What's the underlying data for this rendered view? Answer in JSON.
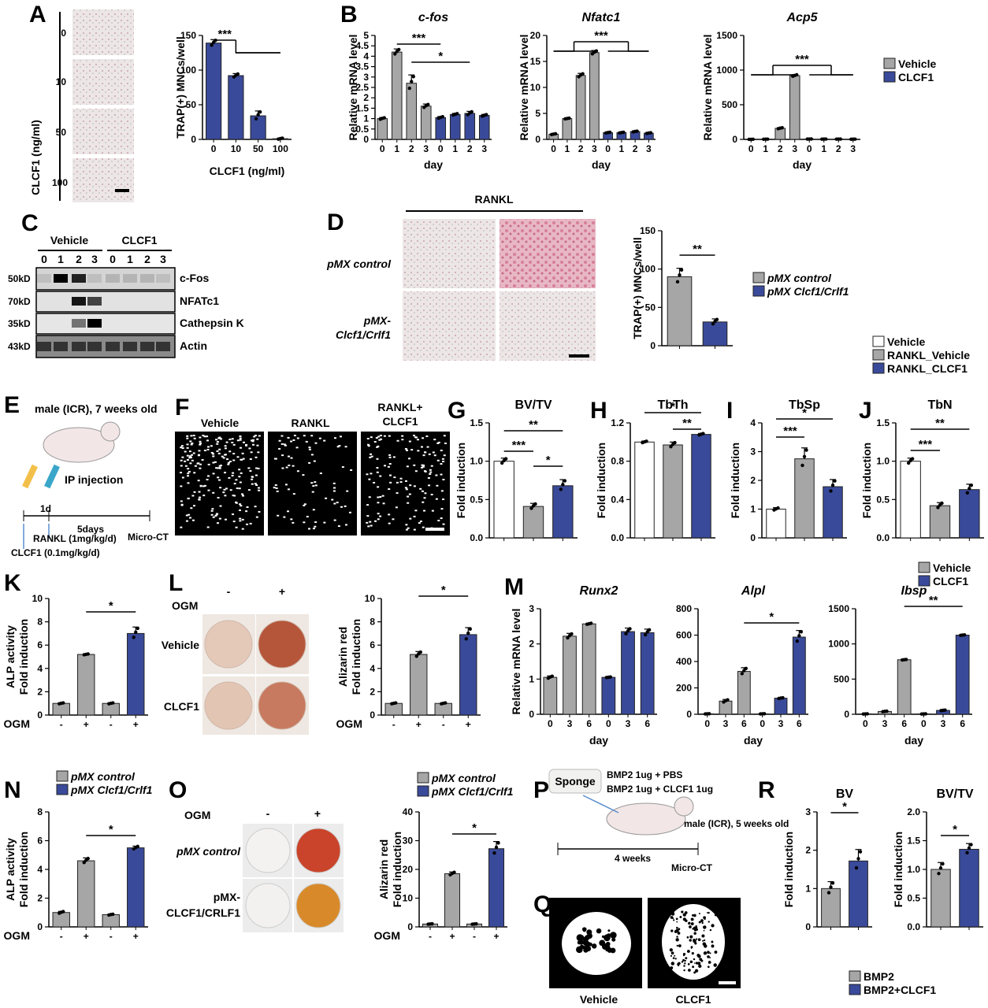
{
  "colors": {
    "vehicle": "#a6a6a6",
    "clcf1": "#3a4a9a",
    "white": "#ffffff",
    "stain": "#e6c3cc",
    "ctbg": "#000000"
  },
  "panel_letters": [
    "A",
    "B",
    "C",
    "D",
    "E",
    "F",
    "G",
    "H",
    "I",
    "J",
    "K",
    "L",
    "M",
    "N",
    "O",
    "P",
    "Q",
    "R"
  ],
  "panelA": {
    "side_label": "CLCF1 (ng/ml)",
    "doses": [
      "0",
      "10",
      "50",
      "100"
    ]
  },
  "panelC": {
    "groups": [
      "Vehicle",
      "CLCF1"
    ],
    "lanes": [
      "0",
      "1",
      "2",
      "3",
      "0",
      "1",
      "2",
      "3"
    ],
    "markers": [
      "50kD",
      "70kD",
      "35kD",
      "43kD"
    ],
    "bands": [
      "c-Fos",
      "NFATc1",
      "Cathepsin K",
      "Actin"
    ]
  },
  "panelD": {
    "top_label": "RANKL",
    "row_labels": [
      "pMX control",
      "pMX-",
      "Clcf1/Crlf1"
    ]
  },
  "panelE": {
    "mouse": "male (ICR), 7 weeks old",
    "route": "IP injection",
    "d1": "1d",
    "d5": "5days",
    "end": "Micro-CT",
    "rankl": "RANKL (1mg/kg/d)",
    "clcf1": "CLCF1 (0.1mg/kg/d)"
  },
  "panelF": {
    "labels": [
      "Vehicle",
      "RANKL",
      "RANKL+",
      "CLCF1"
    ]
  },
  "panelL": {
    "ogm": "OGM",
    "minus": "-",
    "plus": "+",
    "rows": [
      "Vehicle",
      "CLCF1"
    ]
  },
  "panelO": {
    "ogm": "OGM",
    "minus": "-",
    "plus": "+",
    "rows": [
      "pMX control",
      "pMX-",
      "CLCF1/CRLF1"
    ]
  },
  "panelP": {
    "sponge": "Sponge",
    "t1": "BMP2 1ug + PBS",
    "t2": "BMP2 1ug + CLCF1 1ug",
    "mouse": "male (ICR), 5 weeks old",
    "dur": "4 weeks",
    "end": "Micro-CT"
  },
  "panelQ": {
    "labels": [
      "Vehicle",
      "CLCF1"
    ]
  },
  "legends": {
    "B": [
      "Vehicle",
      "CLCF1"
    ],
    "D": [
      "pMX control",
      "pMX Clcf1/Crlf1"
    ],
    "GJ": [
      "Vehicle",
      "RANKL_Vehicle",
      "RANKL_CLCF1"
    ],
    "M": [
      "Vehicle",
      "CLCF1"
    ],
    "N": [
      "pMX control",
      "pMX Clcf1/Crlf1"
    ],
    "O": [
      "pMX control",
      "pMX Clcf1/Crlf1"
    ],
    "R": [
      "BMP2",
      "BMP2+CLCF1"
    ]
  },
  "chart_data": [
    {
      "id": "A",
      "type": "bar",
      "ylabel": "TRAP(+) MNCs/well",
      "xlabel": "CLCF1 (ng/ml)",
      "categories": [
        "0",
        "10",
        "50",
        "100"
      ],
      "values": [
        139,
        92,
        34,
        1
      ],
      "errors": [
        5,
        3,
        7,
        1
      ],
      "ylim": [
        0,
        150
      ],
      "yticks": [
        0,
        50,
        100,
        150
      ],
      "sig": [
        "***"
      ]
    },
    {
      "id": "B1",
      "type": "bar",
      "title": "c-fos",
      "ylabel": "Relative mRNA level",
      "xlabel": "day",
      "categories": [
        "0",
        "1",
        "2",
        "3",
        "0",
        "1",
        "2",
        "3"
      ],
      "values": [
        1.0,
        4.2,
        2.7,
        1.6,
        1.05,
        1.2,
        1.25,
        1.15
      ],
      "errors": [
        0.05,
        0.15,
        0.4,
        0.1,
        0.05,
        0.05,
        0.1,
        0.05
      ],
      "ylim": [
        0,
        5
      ],
      "yticks": [
        0,
        0.5,
        1,
        1.5,
        2,
        2.5,
        3,
        3.5,
        4,
        4.5,
        5
      ],
      "sig": [
        "***",
        "*"
      ]
    },
    {
      "id": "B2",
      "type": "bar",
      "title": "Nfatc1",
      "ylabel": "Relative mRNA level",
      "xlabel": "day",
      "categories": [
        "0",
        "1",
        "2",
        "3",
        "0",
        "1",
        "2",
        "3"
      ],
      "values": [
        1.0,
        4.0,
        12.3,
        16.7,
        1.3,
        1.3,
        1.5,
        1.2
      ],
      "errors": [
        0.1,
        0.1,
        0.4,
        0.4,
        0.1,
        0.1,
        0.1,
        0.1
      ],
      "ylim": [
        0,
        20
      ],
      "yticks": [
        0,
        5,
        10,
        15,
        20
      ],
      "sig": [
        "***"
      ]
    },
    {
      "id": "B3",
      "type": "bar",
      "title": "Acp5",
      "ylabel": "Relative mRNA level",
      "xlabel": "day",
      "categories": [
        "0",
        "1",
        "2",
        "3",
        "0",
        "1",
        "2",
        "3"
      ],
      "values": [
        1,
        3,
        160,
        920,
        5,
        4,
        4,
        3
      ],
      "errors": [
        1,
        1,
        10,
        15,
        1,
        1,
        1,
        1
      ],
      "ylim": [
        0,
        1500
      ],
      "yticks": [
        0,
        500,
        1000,
        1500
      ],
      "sig": [
        "***"
      ]
    },
    {
      "id": "D",
      "type": "bar",
      "ylabel": "TRAP(+) MNCs/well",
      "categories": [
        "pMX control",
        "pMX Clcf1/Crlf1"
      ],
      "values": [
        90,
        31
      ],
      "errors": [
        11,
        4
      ],
      "ylim": [
        0,
        150
      ],
      "yticks": [
        0,
        50,
        100,
        150
      ],
      "sig": [
        "**"
      ]
    },
    {
      "id": "G",
      "type": "bar",
      "title": "BV/TV",
      "ylabel": "Fold induction",
      "categories": [
        "Vehicle",
        "RANKL_Vehicle",
        "RANKL_CLCF1"
      ],
      "values": [
        1.0,
        0.41,
        0.68
      ],
      "errors": [
        0.04,
        0.04,
        0.08
      ],
      "ylim": [
        0,
        1.5
      ],
      "yticks": [
        0.0,
        0.5,
        1.0,
        1.5
      ],
      "sig": [
        "***",
        "**",
        "*"
      ]
    },
    {
      "id": "H",
      "type": "bar",
      "title": "TbTh",
      "ylabel": "Fold induction",
      "categories": [
        "Vehicle",
        "RANKL_Vehicle",
        "RANKL_CLCF1"
      ],
      "values": [
        1.0,
        0.97,
        1.08
      ],
      "errors": [
        0.01,
        0.03,
        0.01
      ],
      "ylim": [
        0,
        1.2
      ],
      "yticks": [
        0.0,
        0.4,
        0.8,
        1.2
      ],
      "sig": [
        "*",
        "**"
      ]
    },
    {
      "id": "I",
      "type": "bar",
      "title": "TbSp",
      "ylabel": "Fold induction",
      "categories": [
        "Vehicle",
        "RANKL_Vehicle",
        "RANKL_CLCF1"
      ],
      "values": [
        1.0,
        2.75,
        1.78
      ],
      "errors": [
        0.05,
        0.38,
        0.25
      ],
      "ylim": [
        0,
        4
      ],
      "yticks": [
        0,
        1,
        2,
        3,
        4
      ],
      "sig": [
        "***",
        "*"
      ]
    },
    {
      "id": "J",
      "type": "bar",
      "title": "TbN",
      "ylabel": "Fold induction",
      "categories": [
        "Vehicle",
        "RANKL_Vehicle",
        "RANKL_CLCF1"
      ],
      "values": [
        1.0,
        0.42,
        0.63
      ],
      "errors": [
        0.04,
        0.04,
        0.07
      ],
      "ylim": [
        0,
        1.5
      ],
      "yticks": [
        0.0,
        0.5,
        1.0,
        1.5
      ],
      "sig": [
        "***",
        "**"
      ]
    },
    {
      "id": "K",
      "type": "bar",
      "ylabel": "ALP activity\nFold induction",
      "xlabel": "OGM",
      "categories": [
        "-",
        "+",
        "-",
        "+"
      ],
      "values": [
        1.0,
        5.2,
        1.0,
        7.0
      ],
      "errors": [
        0.05,
        0.05,
        0.05,
        0.55
      ],
      "ylim": [
        0,
        10
      ],
      "yticks": [
        0,
        2,
        4,
        6,
        8,
        10
      ],
      "sig": [
        "*"
      ]
    },
    {
      "id": "L",
      "type": "bar",
      "ylabel": "Alizarin red\nFold induction",
      "xlabel": "OGM",
      "categories": [
        "-",
        "+",
        "-",
        "+"
      ],
      "values": [
        1.0,
        5.2,
        1.0,
        6.9
      ],
      "errors": [
        0.05,
        0.25,
        0.05,
        0.6
      ],
      "ylim": [
        0,
        10
      ],
      "yticks": [
        0,
        2,
        4,
        6,
        8,
        10
      ],
      "sig": [
        "*"
      ]
    },
    {
      "id": "M1",
      "type": "bar",
      "title": "Runx2",
      "ylabel": "Relative mRNA level",
      "xlabel": "day",
      "categories": [
        "0",
        "3",
        "6",
        "0",
        "3",
        "6"
      ],
      "values": [
        1.05,
        2.22,
        2.57,
        1.05,
        2.35,
        2.32
      ],
      "errors": [
        0.04,
        0.08,
        0.02,
        0.01,
        0.1,
        0.1
      ],
      "ylim": [
        0,
        3
      ],
      "yticks": [
        0,
        1,
        2,
        3
      ],
      "sig": []
    },
    {
      "id": "M2",
      "type": "bar",
      "title": "Alpl",
      "xlabel": "day",
      "categories": [
        "0",
        "3",
        "6",
        "0",
        "3",
        "6"
      ],
      "values": [
        3,
        100,
        325,
        3,
        122,
        585
      ],
      "errors": [
        1,
        12,
        28,
        1,
        4,
        50
      ],
      "ylim": [
        0,
        800
      ],
      "yticks": [
        0,
        200,
        400,
        600,
        800
      ],
      "sig": [
        "*"
      ]
    },
    {
      "id": "M3",
      "type": "bar",
      "title": "Ibsp",
      "xlabel": "day",
      "categories": [
        "0",
        "3",
        "6",
        "0",
        "3",
        "6"
      ],
      "values": [
        5,
        40,
        775,
        5,
        55,
        1125
      ],
      "errors": [
        2,
        5,
        5,
        2,
        5,
        5
      ],
      "ylim": [
        0,
        1500
      ],
      "yticks": [
        0,
        500,
        1000,
        1500
      ],
      "sig": [
        "**"
      ]
    },
    {
      "id": "N",
      "type": "bar",
      "ylabel": "ALP activity\nFold induction",
      "xlabel": "OGM",
      "categories": [
        "-",
        "+",
        "-",
        "+"
      ],
      "values": [
        1.0,
        4.6,
        0.85,
        5.5
      ],
      "errors": [
        0.08,
        0.2,
        0.04,
        0.12
      ],
      "ylim": [
        0,
        8
      ],
      "yticks": [
        0,
        2,
        4,
        6,
        8
      ],
      "sig": [
        "*"
      ]
    },
    {
      "id": "O",
      "type": "bar",
      "ylabel": "Alizarin red\nFold induction",
      "xlabel": "OGM",
      "categories": [
        "-",
        "+",
        "-",
        "+"
      ],
      "values": [
        1.0,
        18.5,
        1.0,
        27.2
      ],
      "errors": [
        0.1,
        0.6,
        0.1,
        2.5
      ],
      "ylim": [
        0,
        40
      ],
      "yticks": [
        0,
        10,
        20,
        30,
        40
      ],
      "sig": [
        "*"
      ]
    },
    {
      "id": "R1",
      "type": "bar",
      "title": "BV",
      "ylabel": "Fold induction",
      "categories": [
        "BMP2",
        "BMP2+CLCF1"
      ],
      "values": [
        1.0,
        1.72
      ],
      "errors": [
        0.18,
        0.3
      ],
      "ylim": [
        0,
        3
      ],
      "yticks": [
        0,
        1,
        2,
        3
      ],
      "sig": [
        "*"
      ]
    },
    {
      "id": "R2",
      "type": "bar",
      "title": "BV/TV",
      "ylabel": "Fold induction",
      "categories": [
        "BMP2",
        "BMP2+CLCF1"
      ],
      "values": [
        1.0,
        1.35
      ],
      "errors": [
        0.12,
        0.1
      ],
      "ylim": [
        0,
        2.0
      ],
      "yticks": [
        0.0,
        0.5,
        1.0,
        1.5,
        2.0
      ],
      "sig": [
        "*"
      ]
    }
  ]
}
